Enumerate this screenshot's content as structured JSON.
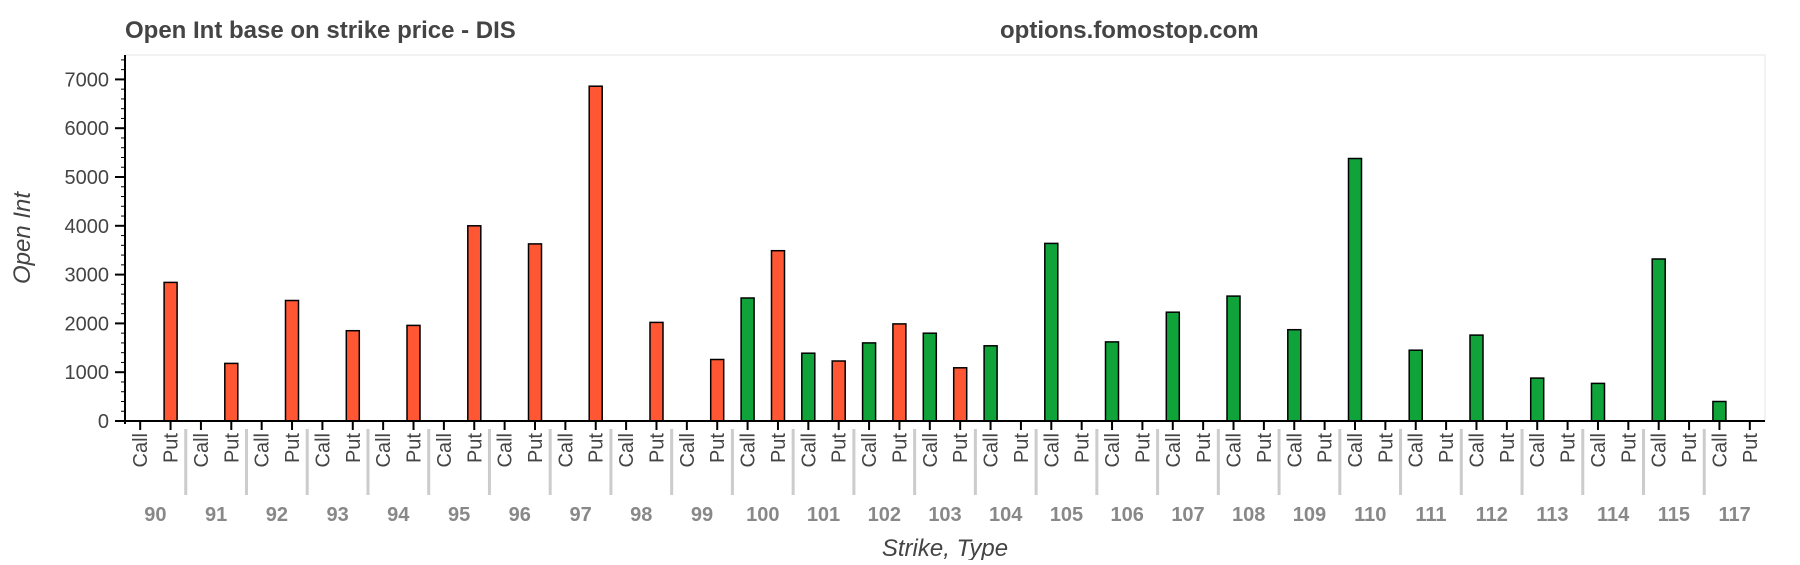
{
  "header": {
    "title": "Open Int base on strike price - DIS",
    "site": "options.fomostop.com"
  },
  "colors": {
    "call": "#0fa33a",
    "put": "#ff5733",
    "bar_outline": "#000000",
    "title_text": "#444444",
    "axis_text": "#444444",
    "group_text": "#888888",
    "separator": "#cccccc"
  },
  "chart_data": {
    "type": "bar",
    "title": "Open Int base on strike price - DIS",
    "xlabel": "Strike, Type",
    "ylabel": "Open Int",
    "ylim": [
      0,
      7500
    ],
    "yticks": [
      0,
      1000,
      2000,
      3000,
      4000,
      5000,
      6000,
      7000
    ],
    "grid": false,
    "subcategories": [
      "Call",
      "Put"
    ],
    "categories": [
      "90",
      "91",
      "92",
      "93",
      "94",
      "95",
      "96",
      "97",
      "98",
      "99",
      "100",
      "101",
      "102",
      "103",
      "104",
      "105",
      "106",
      "107",
      "108",
      "109",
      "110",
      "111",
      "112",
      "113",
      "114",
      "115",
      "117"
    ],
    "series": [
      {
        "name": "Call",
        "values": [
          0,
          0,
          0,
          0,
          0,
          0,
          0,
          0,
          0,
          0,
          2520,
          1390,
          1600,
          1800,
          1540,
          3640,
          1620,
          2230,
          2560,
          1870,
          5380,
          1450,
          1760,
          880,
          770,
          3320,
          400
        ]
      },
      {
        "name": "Put",
        "values": [
          2840,
          1180,
          2470,
          1850,
          1960,
          4000,
          3630,
          6860,
          2020,
          1260,
          3490,
          1230,
          1990,
          1090,
          0,
          0,
          0,
          0,
          0,
          0,
          0,
          0,
          0,
          0,
          0,
          0,
          0
        ]
      }
    ]
  }
}
